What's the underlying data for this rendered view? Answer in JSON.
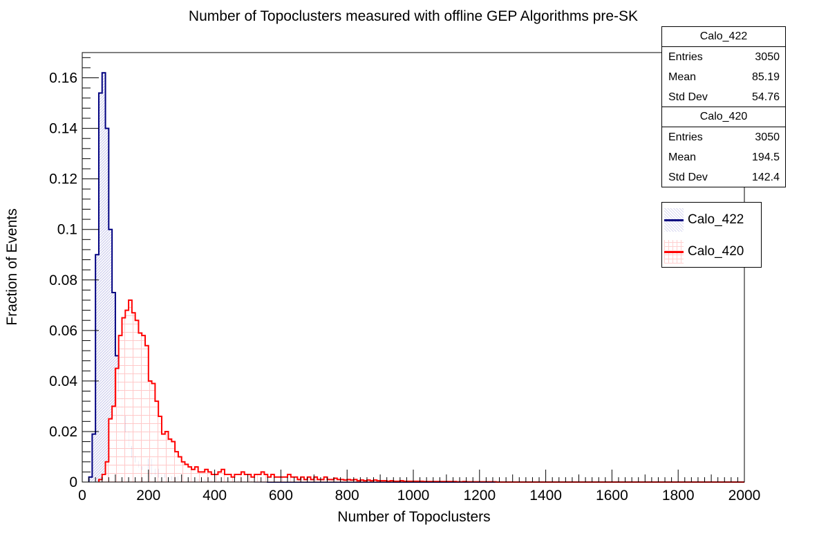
{
  "chart_data": {
    "type": "histogram",
    "title": "Number of Topoclusters measured with offline GEP Algorithms pre-SK",
    "xlabel": "Number of Topoclusters",
    "ylabel": "Fraction of Events",
    "xlim": [
      0,
      2000
    ],
    "ylim": [
      0,
      0.17
    ],
    "bin_width": 10,
    "x_ticks": [
      "0",
      "200",
      "400",
      "600",
      "800",
      "1000",
      "1200",
      "1400",
      "1600",
      "1800",
      "2000"
    ],
    "y_ticks": [
      "0",
      "0.02",
      "0.04",
      "0.06",
      "0.08",
      "0.1",
      "0.12",
      "0.14",
      "0.16"
    ],
    "grid": false,
    "legend_position": "top-right",
    "series": [
      {
        "name": "Calo_422",
        "color": "#000080",
        "fill": "hatched-lavender",
        "bins": [
          [
            20,
            0.002
          ],
          [
            30,
            0.019
          ],
          [
            40,
            0.09
          ],
          [
            50,
            0.154
          ],
          [
            60,
            0.162
          ],
          [
            70,
            0.14
          ],
          [
            80,
            0.1
          ],
          [
            90,
            0.075
          ],
          [
            100,
            0.05
          ],
          [
            110,
            0.036
          ],
          [
            120,
            0.026
          ],
          [
            130,
            0.02
          ],
          [
            140,
            0.014
          ],
          [
            150,
            0.01
          ],
          [
            160,
            0.008
          ],
          [
            170,
            0.006
          ],
          [
            180,
            0.005
          ],
          [
            190,
            0.004
          ],
          [
            200,
            0.009
          ],
          [
            210,
            0.003
          ],
          [
            220,
            0.005
          ],
          [
            230,
            0.002
          ],
          [
            240,
            0.003
          ],
          [
            250,
            0.002
          ],
          [
            260,
            0.001
          ],
          [
            270,
            0.002
          ],
          [
            280,
            0.001
          ],
          [
            290,
            0.002
          ],
          [
            300,
            0.001
          ],
          [
            310,
            0.001
          ],
          [
            320,
            0.0015
          ],
          [
            330,
            0.0008
          ],
          [
            340,
            0.001
          ],
          [
            350,
            0.0008
          ],
          [
            360,
            0.0005
          ],
          [
            370,
            0.0008
          ],
          [
            380,
            0.0005
          ],
          [
            390,
            0.0003
          ],
          [
            400,
            0.0005
          ],
          [
            410,
            0.0003
          ],
          [
            420,
            0.0003
          ],
          [
            430,
            0.0005
          ],
          [
            440,
            0.0003
          ],
          [
            450,
            0.0003
          ],
          [
            460,
            0.0003
          ],
          [
            470,
            0.0002
          ],
          [
            480,
            0.0002
          ],
          [
            490,
            0.0002
          ],
          [
            500,
            0.0002
          ],
          [
            510,
            0.0002
          ],
          [
            520,
            0.0001
          ],
          [
            530,
            0.0001
          ],
          [
            540,
            0.0001
          ],
          [
            550,
            0.0001
          ]
        ]
      },
      {
        "name": "Calo_420",
        "color": "#ff0000",
        "fill": "grid-pink",
        "bins": [
          [
            50,
            0.001
          ],
          [
            60,
            0.003
          ],
          [
            70,
            0.008
          ],
          [
            80,
            0.025
          ],
          [
            90,
            0.03
          ],
          [
            100,
            0.045
          ],
          [
            110,
            0.058
          ],
          [
            120,
            0.065
          ],
          [
            130,
            0.068
          ],
          [
            140,
            0.072
          ],
          [
            150,
            0.067
          ],
          [
            160,
            0.064
          ],
          [
            170,
            0.059
          ],
          [
            180,
            0.058
          ],
          [
            190,
            0.054
          ],
          [
            200,
            0.04
          ],
          [
            210,
            0.039
          ],
          [
            220,
            0.032
          ],
          [
            230,
            0.026
          ],
          [
            240,
            0.019
          ],
          [
            250,
            0.02
          ],
          [
            260,
            0.017
          ],
          [
            270,
            0.016
          ],
          [
            280,
            0.012
          ],
          [
            290,
            0.01
          ],
          [
            300,
            0.008
          ],
          [
            310,
            0.007
          ],
          [
            320,
            0.006
          ],
          [
            330,
            0.005
          ],
          [
            340,
            0.006
          ],
          [
            350,
            0.004
          ],
          [
            360,
            0.004
          ],
          [
            370,
            0.005
          ],
          [
            380,
            0.004
          ],
          [
            390,
            0.003
          ],
          [
            400,
            0.003
          ],
          [
            410,
            0.004
          ],
          [
            420,
            0.005
          ],
          [
            430,
            0.003
          ],
          [
            440,
            0.003
          ],
          [
            450,
            0.002
          ],
          [
            460,
            0.003
          ],
          [
            470,
            0.003
          ],
          [
            480,
            0.004
          ],
          [
            490,
            0.003
          ],
          [
            500,
            0.003
          ],
          [
            510,
            0.002
          ],
          [
            520,
            0.003
          ],
          [
            530,
            0.003
          ],
          [
            540,
            0.004
          ],
          [
            550,
            0.003
          ],
          [
            560,
            0.002
          ],
          [
            570,
            0.003
          ],
          [
            580,
            0.002
          ],
          [
            590,
            0.002
          ],
          [
            600,
            0.002
          ],
          [
            610,
            0.002
          ],
          [
            620,
            0.003
          ],
          [
            630,
            0.002
          ],
          [
            640,
            0.002
          ],
          [
            650,
            0.001
          ],
          [
            660,
            0.002
          ],
          [
            670,
            0.001
          ],
          [
            680,
            0.002
          ],
          [
            690,
            0.001
          ],
          [
            700,
            0.002
          ],
          [
            710,
            0.001
          ],
          [
            720,
            0.001
          ],
          [
            730,
            0.002
          ],
          [
            740,
            0.001
          ],
          [
            750,
            0.001
          ],
          [
            760,
            0.0015
          ],
          [
            770,
            0.001
          ],
          [
            780,
            0.001
          ],
          [
            790,
            0.0008
          ],
          [
            800,
            0.001
          ],
          [
            810,
            0.0008
          ],
          [
            820,
            0.001
          ],
          [
            830,
            0.0005
          ],
          [
            840,
            0.0008
          ],
          [
            850,
            0.0005
          ],
          [
            860,
            0.0008
          ],
          [
            870,
            0.0005
          ],
          [
            880,
            0.0008
          ],
          [
            890,
            0.0005
          ],
          [
            900,
            0.0005
          ],
          [
            910,
            0.0005
          ],
          [
            920,
            0.0003
          ],
          [
            930,
            0.0005
          ],
          [
            940,
            0.0003
          ],
          [
            950,
            0.0003
          ],
          [
            960,
            0.0005
          ],
          [
            970,
            0.0003
          ],
          [
            980,
            0.0003
          ],
          [
            990,
            0.0003
          ],
          [
            1000,
            0.0003
          ],
          [
            1010,
            0.0003
          ],
          [
            1020,
            0.0003
          ],
          [
            1030,
            0.0002
          ],
          [
            1040,
            0.0002
          ],
          [
            1050,
            0.0002
          ],
          [
            1060,
            0.0002
          ],
          [
            1070,
            0.0002
          ],
          [
            1080,
            0.0002
          ],
          [
            1090,
            0.0002
          ],
          [
            1100,
            0.0002
          ],
          [
            1110,
            0.0002
          ],
          [
            1120,
            0.0002
          ],
          [
            1130,
            0.0001
          ],
          [
            1140,
            0.0001
          ],
          [
            1150,
            0.0002
          ],
          [
            1160,
            0.0001
          ],
          [
            1170,
            0.0001
          ],
          [
            1180,
            0.0001
          ],
          [
            1190,
            0.0001
          ],
          [
            1200,
            0.0001
          ],
          [
            1210,
            0.0001
          ],
          [
            1220,
            0.0001
          ],
          [
            1230,
            0.0001
          ],
          [
            1240,
            0.0001
          ]
        ]
      }
    ]
  },
  "stats": [
    {
      "name": "Calo_422",
      "rows": [
        {
          "label": "Entries",
          "value": "3050"
        },
        {
          "label": "Mean",
          "value": "85.19"
        },
        {
          "label": "Std Dev",
          "value": "54.76"
        }
      ]
    },
    {
      "name": "Calo_420",
      "rows": [
        {
          "label": "Entries",
          "value": "3050"
        },
        {
          "label": "Mean",
          "value": "194.5"
        },
        {
          "label": "Std Dev",
          "value": "142.4"
        }
      ]
    }
  ],
  "legend": [
    {
      "label": "Calo_422",
      "color": "#000080"
    },
    {
      "label": "Calo_420",
      "color": "#ff0000"
    }
  ]
}
